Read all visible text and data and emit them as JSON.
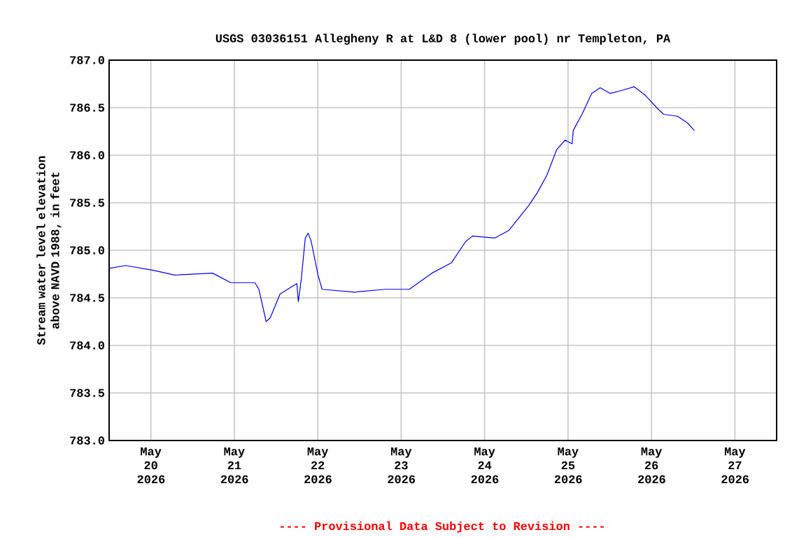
{
  "chart_data": {
    "type": "line",
    "title": "USGS 03036151 Allegheny R at L&D 8 (lower pool) nr Templeton, PA",
    "ylabel": "Stream water level elevation above NAVD 1988, in feet",
    "annotations": [
      "---- Provisional Data Subject to Revision ----"
    ],
    "xlim": [
      "2026-05-19T12:00",
      "2026-05-27T12:00"
    ],
    "xticks": [
      {
        "value": "2026-05-20",
        "label": "May 20 2026"
      },
      {
        "value": "2026-05-21",
        "label": "May 21 2026"
      },
      {
        "value": "2026-05-22",
        "label": "May 22 2026"
      },
      {
        "value": "2026-05-23",
        "label": "May 23 2026"
      },
      {
        "value": "2026-05-24",
        "label": "May 24 2026"
      },
      {
        "value": "2026-05-25",
        "label": "May 25 2026"
      },
      {
        "value": "2026-05-26",
        "label": "May 26 2026"
      },
      {
        "value": "2026-05-27",
        "label": "May 27 2026"
      }
    ],
    "ylim": [
      783.0,
      787.0
    ],
    "yticks": [
      {
        "value": 783.0,
        "label": "783.0"
      },
      {
        "value": 783.5,
        "label": "783.5"
      },
      {
        "value": 784.0,
        "label": "784.0"
      },
      {
        "value": 784.5,
        "label": "784.5"
      },
      {
        "value": 785.0,
        "label": "785.0"
      },
      {
        "value": 785.5,
        "label": "785.5"
      },
      {
        "value": 786.0,
        "label": "786.0"
      },
      {
        "value": 786.5,
        "label": "786.5"
      },
      {
        "value": 787.0,
        "label": "787.0"
      }
    ],
    "grid": true,
    "marker": "none",
    "line_style": "solid",
    "series": [
      {
        "color": "#0000ff",
        "x": [
          "2026-05-19T12:00",
          "2026-05-19T16:45",
          "2026-05-20T00:45",
          "2026-05-20T06:50",
          "2026-05-20T17:45",
          "2026-05-20T23:00",
          "2026-05-21T05:55",
          "2026-05-21T07:05",
          "2026-05-21T09:10",
          "2026-05-21T10:20",
          "2026-05-21T13:10",
          "2026-05-21T18:00",
          "2026-05-21T18:25",
          "2026-05-21T19:15",
          "2026-05-21T20:25",
          "2026-05-21T21:15",
          "2026-05-21T22:05",
          "2026-05-22T00:05",
          "2026-05-22T01:15",
          "2026-05-22T10:35",
          "2026-05-22T19:30",
          "2026-05-23T02:20",
          "2026-05-23T08:50",
          "2026-05-23T14:30",
          "2026-05-23T18:30",
          "2026-05-23T20:30",
          "2026-05-24T03:00",
          "2026-05-24T07:00",
          "2026-05-24T12:40",
          "2026-05-24T15:05",
          "2026-05-24T17:55",
          "2026-05-24T20:45",
          "2026-05-24T23:10",
          "2026-05-25T01:10",
          "2026-05-25T01:30",
          "2026-05-25T04:00",
          "2026-05-25T06:50",
          "2026-05-25T09:15",
          "2026-05-25T12:05",
          "2026-05-25T15:20",
          "2026-05-25T19:00",
          "2026-05-25T22:15",
          "2026-05-26T01:30",
          "2026-05-26T03:30",
          "2026-05-26T07:30",
          "2026-05-26T10:20",
          "2026-05-26T12:20"
        ],
        "values": [
          784.81,
          784.84,
          784.79,
          784.74,
          784.76,
          784.66,
          784.66,
          784.59,
          784.25,
          784.29,
          784.54,
          784.65,
          784.46,
          784.69,
          785.13,
          785.18,
          785.1,
          784.74,
          784.59,
          784.56,
          784.59,
          784.59,
          784.76,
          784.87,
          785.09,
          785.15,
          785.13,
          785.21,
          785.47,
          785.6,
          785.79,
          786.06,
          786.16,
          786.12,
          786.26,
          786.43,
          786.65,
          786.71,
          786.65,
          786.68,
          786.72,
          786.63,
          786.5,
          786.43,
          786.41,
          786.34,
          786.26
        ]
      }
    ]
  }
}
